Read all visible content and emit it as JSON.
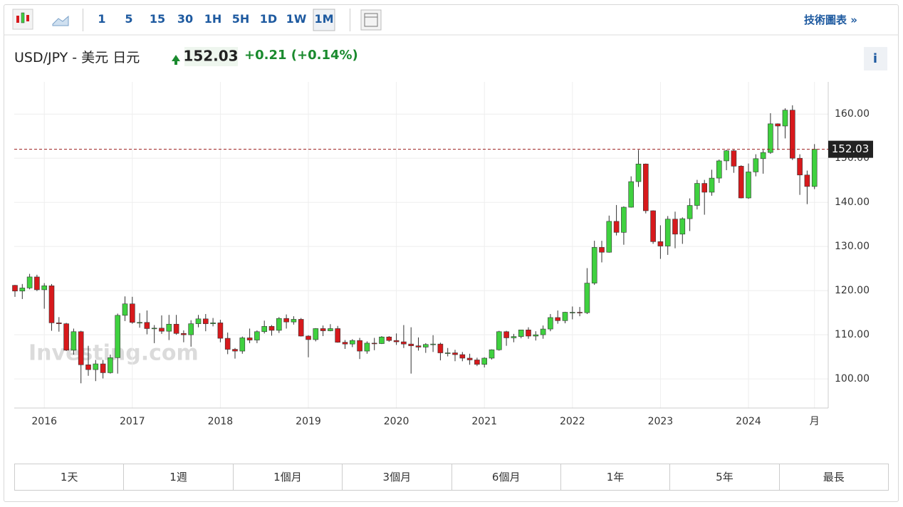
{
  "toolbar": {
    "intervals": [
      "1",
      "5",
      "15",
      "30",
      "1H",
      "5H",
      "1D",
      "1W",
      "1M"
    ],
    "link": "技術圖表 »"
  },
  "header": {
    "symbol": "USD/JPY - 美元 日元",
    "change": "+0.21",
    "change_pct": "(+0.14%)"
  },
  "ranges": [
    "1天",
    "1週",
    "1個月",
    "3個月",
    "6個月",
    "1年",
    "5年",
    "最長"
  ],
  "chart_data": {
    "type": "candlestick",
    "watermark": "Investing.com",
    "categories": [
      null,
      null,
      null,
      null,
      "2016",
      null,
      null,
      null,
      null,
      null,
      null,
      null,
      null,
      null,
      null,
      null,
      "2017",
      null,
      null,
      null,
      null,
      null,
      null,
      null,
      null,
      null,
      null,
      null,
      "2018",
      null,
      null,
      null,
      null,
      null,
      null,
      null,
      null,
      null,
      null,
      null,
      "2019",
      null,
      null,
      null,
      null,
      null,
      null,
      null,
      null,
      null,
      null,
      null,
      "2020",
      null,
      null,
      null,
      null,
      null,
      null,
      null,
      null,
      null,
      null,
      null,
      "2021",
      null,
      null,
      null,
      null,
      null,
      null,
      null,
      null,
      null,
      null,
      null,
      "2022",
      null,
      null,
      null,
      null,
      null,
      null,
      null,
      null,
      null,
      null,
      null,
      "2023",
      null,
      null,
      null,
      null,
      null,
      null,
      null,
      null,
      null,
      null,
      null,
      "2024",
      null,
      null,
      null,
      null,
      null,
      null,
      null,
      null,
      "月"
    ],
    "open": [
      121.2,
      119.9,
      120.6,
      123.1,
      120.2,
      121.1,
      112.7,
      112.5,
      106.5,
      110.7,
      103.2,
      102.1,
      103.4,
      101.4,
      104.8,
      114.4,
      117.0,
      112.8,
      112.8,
      111.4,
      111.5,
      110.8,
      112.4,
      110.3,
      110.0,
      112.5,
      113.6,
      112.5,
      112.7,
      109.2,
      106.7,
      106.3,
      109.3,
      108.8,
      110.7,
      111.9,
      111.0,
      113.7,
      112.9,
      113.5,
      109.7,
      108.9,
      111.4,
      110.9,
      111.4,
      108.3,
      107.9,
      108.7,
      106.3,
      108.1,
      108.0,
      109.5,
      108.7,
      108.4,
      107.9,
      107.5,
      107.2,
      107.8,
      107.9,
      105.9,
      105.9,
      105.5,
      104.7,
      104.3,
      103.3,
      104.7,
      106.6,
      110.7,
      109.3,
      109.6,
      111.1,
      109.7,
      110.0,
      111.3,
      113.9,
      113.2,
      115.1,
      115.1,
      115.0,
      121.7,
      129.8,
      128.7,
      135.7,
      133.2,
      138.9,
      144.7,
      148.7,
      138.1,
      131.1,
      130.1,
      136.2,
      132.8,
      136.3,
      139.3,
      144.3,
      142.3,
      145.5,
      149.4,
      151.7,
      148.2,
      141.0,
      146.9,
      149.9,
      151.3,
      157.8,
      157.3,
      160.9,
      150.0,
      146.2,
      143.6
    ],
    "high": [
      121.3,
      121.5,
      123.8,
      123.6,
      121.7,
      121.5,
      114.0,
      112.7,
      111.4,
      110.9,
      107.5,
      104.3,
      104.3,
      105.5,
      114.8,
      118.7,
      118.6,
      114.9,
      115.5,
      112.2,
      114.4,
      114.5,
      114.5,
      111.0,
      113.3,
      114.5,
      114.7,
      113.8,
      113.4,
      110.5,
      107.0,
      109.6,
      111.4,
      111.0,
      113.2,
      112.2,
      114.0,
      114.6,
      114.2,
      113.8,
      109.9,
      111.5,
      112.1,
      112.4,
      112.0,
      108.8,
      109.0,
      109.3,
      108.5,
      109.3,
      109.7,
      109.7,
      110.3,
      112.2,
      111.7,
      109.4,
      108.1,
      109.9,
      108.2,
      107.0,
      106.6,
      106.1,
      105.7,
      104.8,
      104.9,
      106.7,
      110.9,
      110.9,
      110.2,
      111.1,
      111.7,
      110.8,
      112.1,
      114.7,
      115.5,
      115.2,
      116.4,
      116.3,
      125.1,
      131.3,
      131.3,
      137.0,
      139.4,
      139.1,
      145.9,
      151.9,
      148.8,
      138.2,
      134.8,
      136.9,
      137.9,
      136.6,
      140.9,
      145.1,
      145.1,
      147.4,
      149.7,
      151.9,
      151.9,
      148.4,
      148.8,
      150.9,
      151.9,
      160.2,
      157.9,
      161.3,
      162.0,
      150.9,
      147.2,
      153.2
    ],
    "low": [
      118.6,
      118.1,
      120.3,
      119.9,
      115.9,
      110.9,
      110.7,
      106.3,
      105.5,
      99.0,
      100.7,
      99.5,
      100.1,
      101.2,
      101.2,
      113.1,
      112.5,
      111.6,
      110.1,
      108.1,
      110.2,
      108.8,
      110.0,
      108.3,
      107.3,
      111.7,
      110.8,
      111.9,
      108.3,
      105.6,
      104.6,
      105.7,
      108.1,
      108.1,
      110.3,
      109.8,
      110.4,
      111.4,
      112.3,
      109.6,
      104.9,
      108.5,
      109.7,
      110.8,
      108.2,
      106.8,
      107.2,
      104.5,
      105.7,
      106.5,
      107.9,
      108.4,
      107.7,
      107.0,
      101.2,
      106.4,
      105.9,
      106.1,
      104.2,
      105.1,
      104.0,
      104.0,
      103.2,
      102.9,
      102.6,
      104.4,
      106.4,
      107.5,
      108.3,
      109.2,
      109.1,
      108.7,
      109.1,
      110.8,
      112.5,
      112.6,
      113.5,
      114.2,
      114.7,
      121.3,
      126.4,
      128.6,
      132.5,
      130.4,
      138.8,
      143.5,
      137.5,
      130.6,
      127.2,
      128.1,
      129.6,
      130.6,
      133.5,
      138.4,
      137.2,
      141.5,
      144.4,
      147.3,
      146.7,
      140.9,
      140.8,
      145.9,
      146.5,
      151.0,
      151.9,
      154.5,
      149.6,
      141.7,
      139.6,
      143.0
    ],
    "close": [
      119.9,
      120.6,
      123.1,
      120.2,
      121.1,
      112.7,
      112.5,
      106.5,
      110.7,
      103.2,
      102.1,
      103.4,
      101.4,
      104.8,
      114.4,
      117.0,
      112.8,
      112.8,
      111.4,
      111.5,
      110.8,
      112.4,
      110.3,
      110.0,
      112.5,
      113.6,
      112.5,
      112.7,
      109.2,
      106.7,
      106.3,
      109.3,
      108.8,
      110.7,
      111.9,
      111.0,
      113.7,
      112.9,
      113.5,
      109.7,
      108.9,
      111.4,
      110.9,
      111.4,
      108.3,
      107.9,
      108.7,
      106.3,
      108.1,
      108.0,
      109.5,
      108.7,
      108.4,
      107.9,
      107.5,
      107.2,
      107.8,
      107.9,
      105.9,
      105.9,
      105.5,
      104.7,
      104.3,
      103.3,
      104.7,
      106.6,
      110.7,
      109.3,
      109.6,
      111.1,
      109.7,
      110.0,
      111.3,
      113.9,
      113.2,
      115.1,
      115.1,
      115.0,
      121.7,
      129.8,
      128.7,
      135.7,
      133.2,
      138.9,
      144.7,
      148.7,
      138.1,
      131.1,
      130.1,
      136.2,
      132.8,
      136.3,
      139.3,
      144.3,
      142.3,
      145.5,
      149.4,
      151.7,
      148.2,
      141.0,
      146.9,
      149.9,
      151.3,
      157.8,
      157.3,
      160.9,
      150.0,
      146.2,
      143.6,
      152.03
    ],
    "up_color": "#3fd13f",
    "down_color": "#d7191c",
    "price_line_color": "#9b1c1c",
    "ylim": [
      93.4,
      167.3
    ],
    "yticks": [
      {
        "value": 100,
        "label": "100.00"
      },
      {
        "value": 110,
        "label": "110.00"
      },
      {
        "value": 120,
        "label": "120.00"
      },
      {
        "value": 130,
        "label": "130.00"
      },
      {
        "value": 140,
        "label": "140.00"
      },
      {
        "value": 150,
        "label": "150.00"
      },
      {
        "value": 160,
        "label": "160.00"
      }
    ],
    "grid": true
  }
}
